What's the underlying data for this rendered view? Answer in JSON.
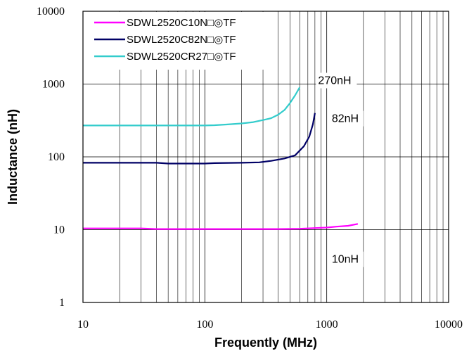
{
  "chart_data": {
    "type": "line",
    "xlabel": "Frequently (MHz)",
    "ylabel": "Inductance (nH)",
    "x_scale": "log",
    "y_scale": "log",
    "xlim": [
      10,
      10000
    ],
    "ylim": [
      1,
      10000
    ],
    "x_ticks": [
      "10",
      "100",
      "1000",
      "10000"
    ],
    "y_ticks": [
      "1",
      "10",
      "100",
      "1000",
      "10000"
    ],
    "grid": true,
    "legend_position": "top-left",
    "series": [
      {
        "name": "SDWL2520C10N□◎TF",
        "color": "#ff00ff",
        "x": [
          10,
          20,
          30,
          40,
          60,
          100,
          200,
          400,
          600,
          1000,
          1200,
          1500,
          1800
        ],
        "y": [
          10.4,
          10.4,
          10.4,
          10.2,
          10.2,
          10.2,
          10.2,
          10.2,
          10.3,
          10.7,
          11.0,
          11.3,
          12.0
        ]
      },
      {
        "name": "SDWL2520C82N□◎TF",
        "color": "#000066",
        "x": [
          10,
          20,
          40,
          50,
          100,
          120,
          200,
          280,
          350,
          450,
          550,
          650,
          720,
          770,
          800
        ],
        "y": [
          83,
          83,
          83,
          81,
          81,
          82,
          83,
          84,
          88,
          95,
          105,
          140,
          190,
          280,
          400
        ]
      },
      {
        "name": "SDWL2520CR27□◎TF",
        "color": "#33cccc",
        "x": [
          10,
          50,
          100,
          120,
          150,
          200,
          250,
          300,
          350,
          400,
          450,
          500,
          550,
          600
        ],
        "y": [
          270,
          270,
          270,
          272,
          278,
          288,
          300,
          320,
          340,
          380,
          440,
          550,
          700,
          900
        ]
      }
    ],
    "annotations": [
      {
        "text": "270nH",
        "x": 850,
        "y": 1000
      },
      {
        "text": "82nH",
        "x": 1100,
        "y": 300
      },
      {
        "text": "10nH",
        "x": 1100,
        "y": 3.5
      }
    ]
  }
}
